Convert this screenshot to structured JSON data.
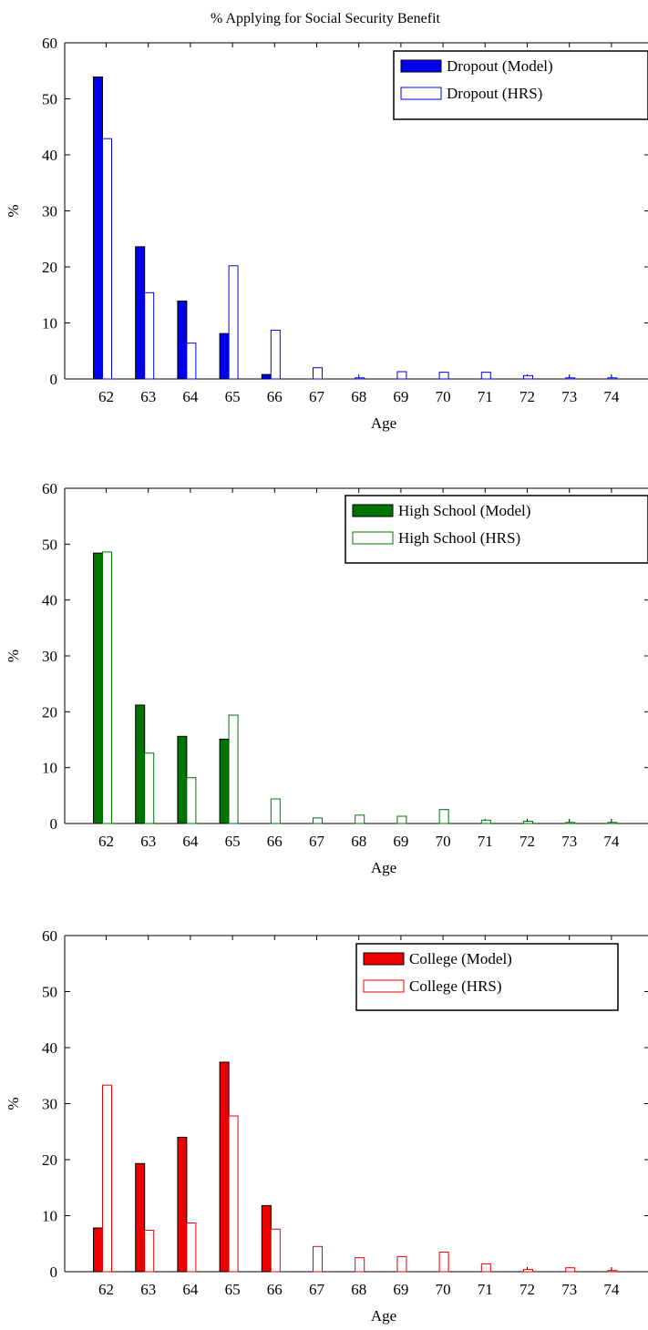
{
  "page_title": "% Applying for Social Security Benefit",
  "colors": {
    "dropout": "#0000ee",
    "high_school": "#007400",
    "college": "#ee0000",
    "axis": "#000000",
    "background": "#ffffff"
  },
  "chart_data": [
    {
      "type": "bar",
      "title": "% Applying for Social Security Benefit",
      "xlabel": "Age",
      "ylabel": "%",
      "ylim": [
        0,
        60
      ],
      "yticks": [
        0,
        10,
        20,
        30,
        40,
        50,
        60
      ],
      "categories": [
        "62",
        "63",
        "64",
        "65",
        "66",
        "67",
        "68",
        "69",
        "70",
        "71",
        "72",
        "73",
        "74"
      ],
      "legend_position": "top-right",
      "series": [
        {
          "name": "Dropout (Model)",
          "style": "filled",
          "color": "#0000ee",
          "values": [
            53.9,
            23.6,
            13.9,
            8.1,
            0.8,
            0,
            0,
            0,
            0,
            0,
            0,
            0,
            0
          ]
        },
        {
          "name": "Dropout (HRS)",
          "style": "outline",
          "color": "#0000ee",
          "values": [
            42.9,
            15.4,
            6.4,
            20.2,
            8.7,
            2.0,
            0.2,
            1.3,
            1.2,
            1.2,
            0.6,
            0.2,
            0.2
          ]
        }
      ]
    },
    {
      "type": "bar",
      "xlabel": "Age",
      "ylabel": "%",
      "ylim": [
        0,
        60
      ],
      "yticks": [
        0,
        10,
        20,
        30,
        40,
        50,
        60
      ],
      "categories": [
        "62",
        "63",
        "64",
        "65",
        "66",
        "67",
        "68",
        "69",
        "70",
        "71",
        "72",
        "73",
        "74"
      ],
      "legend_position": "top-right",
      "series": [
        {
          "name": "High School (Model)",
          "style": "filled",
          "color": "#007400",
          "values": [
            48.4,
            21.2,
            15.6,
            15.1,
            0,
            0,
            0,
            0,
            0,
            0,
            0,
            0,
            0
          ]
        },
        {
          "name": "High School (HRS)",
          "style": "outline",
          "color": "#007400",
          "values": [
            48.6,
            12.6,
            8.2,
            19.4,
            4.4,
            1.0,
            1.5,
            1.3,
            2.5,
            0.6,
            0.4,
            0.2,
            0.2
          ]
        }
      ]
    },
    {
      "type": "bar",
      "xlabel": "Age",
      "ylabel": "%",
      "ylim": [
        0,
        60
      ],
      "yticks": [
        0,
        10,
        20,
        30,
        40,
        50,
        60
      ],
      "categories": [
        "62",
        "63",
        "64",
        "65",
        "66",
        "67",
        "68",
        "69",
        "70",
        "71",
        "72",
        "73",
        "74"
      ],
      "legend_position": "top-right",
      "series": [
        {
          "name": "College (Model)",
          "style": "filled",
          "color": "#ee0000",
          "values": [
            7.8,
            19.3,
            24.0,
            37.4,
            11.8,
            0,
            0,
            0,
            0,
            0,
            0,
            0,
            0
          ]
        },
        {
          "name": "College (HRS)",
          "style": "outline",
          "color": "#ee0000",
          "values": [
            33.3,
            7.4,
            8.7,
            27.8,
            7.6,
            4.5,
            2.5,
            2.7,
            3.5,
            1.4,
            0.4,
            0.7,
            0.2
          ]
        }
      ]
    }
  ]
}
